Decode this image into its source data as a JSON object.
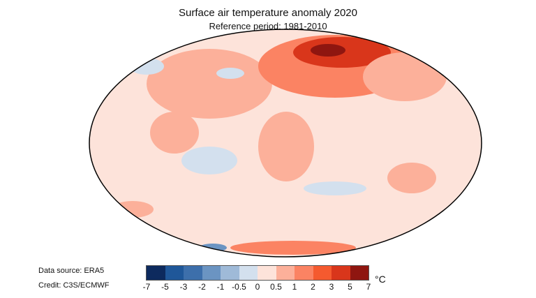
{
  "title": "Surface air temperature anomaly 2020",
  "subtitle": "Reference period: 1981-2010",
  "data_source": "Data source: ERA5",
  "credit": "Credit: C3S/ECMWF",
  "legend": {
    "unit": "°C",
    "ticks": [
      "-7",
      "-5",
      "-3",
      "-2",
      "-1",
      "-0.5",
      "0",
      "0.5",
      "1",
      "2",
      "3",
      "5",
      "7"
    ],
    "colors": [
      "#0d2a5e",
      "#1f5799",
      "#3d6fab",
      "#6b94c2",
      "#9fbad8",
      "#d3e0ee",
      "#fde3da",
      "#fcb09a",
      "#fb8363",
      "#f55a2f",
      "#d9361b",
      "#8f1610"
    ]
  }
}
